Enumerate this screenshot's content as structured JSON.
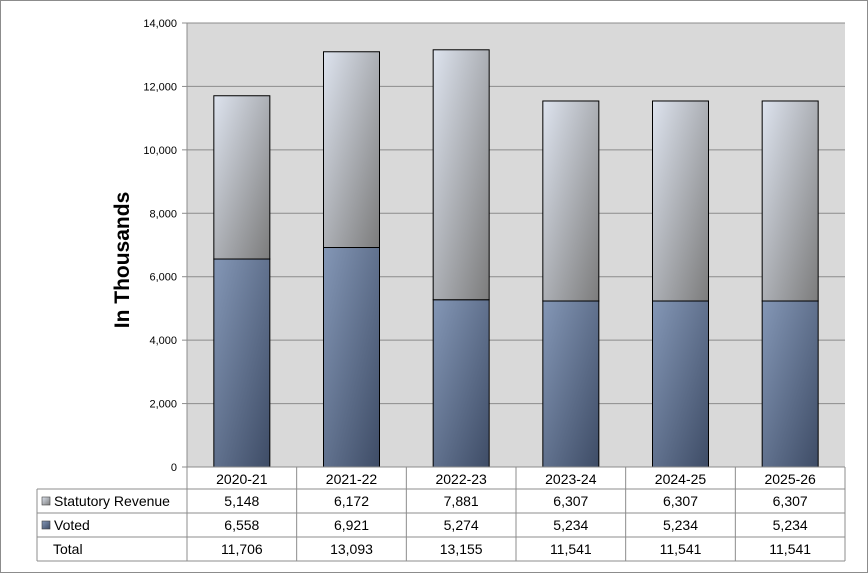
{
  "chart_data": {
    "type": "bar",
    "stacked": true,
    "categories": [
      "2020-21",
      "2021-22",
      "2022-23",
      "2023-24",
      "2024-25",
      "2025-26"
    ],
    "series": [
      {
        "name": "Voted",
        "values": [
          6558,
          6921,
          5274,
          5234,
          5234,
          5234
        ],
        "display": [
          "6,558",
          "6,921",
          "5,274",
          "5,234",
          "5,234",
          "5,234"
        ]
      },
      {
        "name": "Statutory Revenue",
        "values": [
          5148,
          6172,
          7881,
          6307,
          6307,
          6307
        ],
        "display": [
          "5,148",
          "6,172",
          "7,881",
          "6,307",
          "6,307",
          "6,307"
        ]
      }
    ],
    "totals": {
      "name": "Total",
      "values": [
        11706,
        13093,
        13155,
        11541,
        11541,
        11541
      ],
      "display": [
        "11,706",
        "13,093",
        "13,155",
        "11,541",
        "11,541",
        "11,541"
      ]
    },
    "ylabel": "In Thousands",
    "ylim": [
      0,
      14000
    ],
    "yticks": [
      0,
      2000,
      4000,
      6000,
      8000,
      10000,
      12000,
      14000
    ],
    "ytick_labels": [
      "0",
      "2,000",
      "4,000",
      "6,000",
      "8,000",
      "10,000",
      "12,000",
      "14,000"
    ],
    "grid": true,
    "legend": "data-table-rows",
    "colors": {
      "Voted": "#6f82a2",
      "Statutory Revenue": "#b5bcc7",
      "plot_background": "#d9d9d9"
    }
  }
}
